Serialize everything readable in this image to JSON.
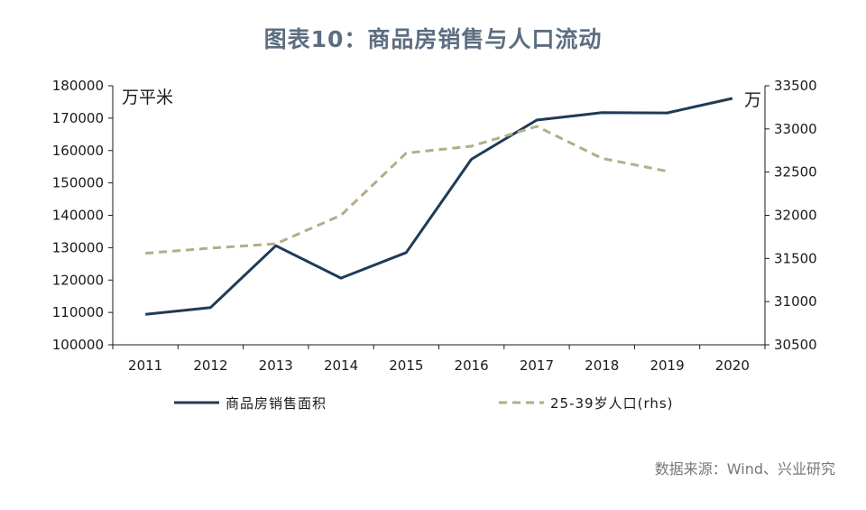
{
  "title": "图表10：商品房销售与人口流动",
  "source_note": "数据来源：Wind、兴业研究",
  "colors": {
    "sales": "#1f3b57",
    "population": "#b4ad86",
    "axis": "#1a1a1a",
    "title": "#5c6e80",
    "source": "#777777"
  },
  "chart_data": {
    "type": "line",
    "x": [
      "2011",
      "2012",
      "2013",
      "2014",
      "2015",
      "2016",
      "2017",
      "2018",
      "2019",
      "2020"
    ],
    "left_axis": {
      "unit": "万平米",
      "ylim": [
        100000,
        180000
      ],
      "ticks": [
        "100000",
        "110000",
        "120000",
        "130000",
        "140000",
        "150000",
        "160000",
        "170000",
        "180000"
      ]
    },
    "right_axis": {
      "unit": "万",
      "ylim": [
        30500,
        33500
      ],
      "ticks": [
        "30500",
        "31000",
        "31500",
        "32000",
        "32500",
        "33000",
        "33500"
      ]
    },
    "series": [
      {
        "name": "商品房销售面积",
        "axis": "left",
        "style": "solid",
        "values": [
          109400,
          111500,
          130600,
          120600,
          128500,
          157300,
          169400,
          171700,
          171600,
          176100
        ]
      },
      {
        "name": "25-39岁人口(rhs)",
        "axis": "right",
        "style": "dashed",
        "values": [
          31560,
          31620,
          31670,
          32000,
          32720,
          32800,
          33030,
          32660,
          32510,
          null
        ]
      }
    ],
    "grid": false,
    "legend": "bottom"
  }
}
